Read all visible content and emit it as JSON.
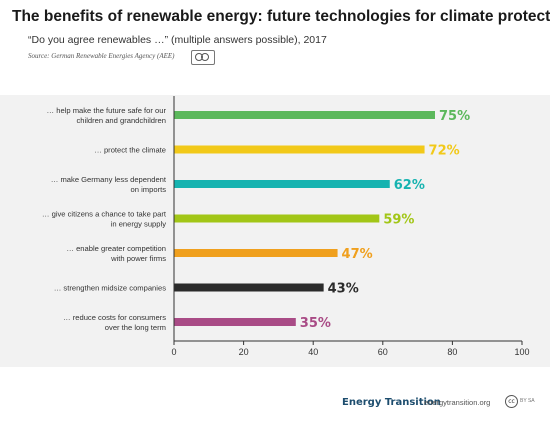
{
  "header": {
    "title": "The benefits of renewable energy: future technologies for climate protection",
    "subtitle": "“Do you agree renewables …” (multiple answers possible), 2017",
    "source": "Source: German Renewable Energies Agency (AEE)"
  },
  "footer": {
    "brand": "Energy Transition",
    "url": "energytransition.org",
    "license_icon": "cc-by-sa-icon"
  },
  "chart_data": {
    "type": "bar",
    "orientation": "horizontal",
    "categories": [
      [
        "… help make the future safe for our",
        "children and grandchildren"
      ],
      [
        "… protect the climate"
      ],
      [
        "… make Germany less dependent",
        "on imports"
      ],
      [
        "… give citizens a chance to take part",
        "in energy supply"
      ],
      [
        "… enable greater competition",
        "with power firms"
      ],
      [
        "… strengthen midsize companies"
      ],
      [
        "… reduce costs for consumers",
        "over the long term"
      ]
    ],
    "values": [
      75,
      72,
      62,
      59,
      47,
      43,
      35
    ],
    "value_labels": [
      "75%",
      "72%",
      "62%",
      "59%",
      "47%",
      "43%",
      "35%"
    ],
    "colors": [
      "#5cb85c",
      "#f2c919",
      "#16b3b0",
      "#a2c617",
      "#f0a01e",
      "#2b2b2b",
      "#a94b86"
    ],
    "xlim": [
      0,
      100
    ],
    "xticks": [
      0,
      20,
      40,
      60,
      80,
      100
    ],
    "xtick_labels": [
      "0",
      "20",
      "40",
      "60",
      "80",
      "100"
    ],
    "grid": false,
    "legend": "none"
  }
}
